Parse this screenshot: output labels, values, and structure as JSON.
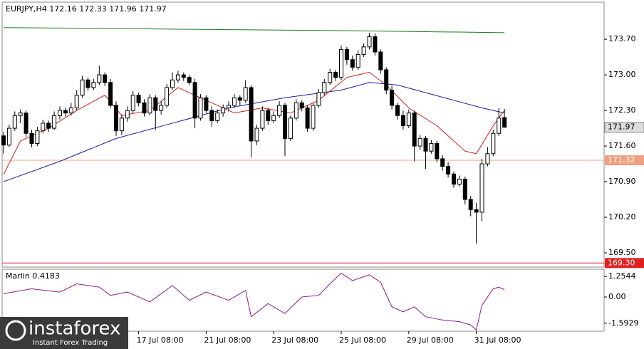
{
  "chart_data": [
    {
      "type": "candlestick",
      "title": "EURJPY,H4  172.16 172.33 171.96 171.97",
      "ylim": [
        169.22,
        174.43
      ],
      "yticks": [
        {
          "value": 173.7,
          "label": "173.70"
        },
        {
          "value": 173,
          "label": "173.00"
        },
        {
          "value": 172.3,
          "label": "172.30"
        },
        {
          "value": 171.6,
          "label": "171.60"
        },
        {
          "value": 170.9,
          "label": "170.90"
        },
        {
          "value": 170.2,
          "label": "170.20"
        },
        {
          "value": 169.5,
          "label": "169.50"
        }
      ],
      "xticks": [
        {
          "value": 24,
          "label": "17 Jul 08:00"
        },
        {
          "value": 36,
          "label": "21 Jul 08:00"
        },
        {
          "value": 48,
          "label": "23 Jul 08:00"
        },
        {
          "value": 60,
          "label": "25 Jul 08:00"
        },
        {
          "value": 72,
          "label": "29 Jul 08:00"
        },
        {
          "value": 84,
          "label": "31 Jul 08:00"
        }
      ],
      "ohlc": [
        [
          171.8,
          171.88,
          171.45,
          171.62
        ],
        [
          171.62,
          172.02,
          171.58,
          171.95
        ],
        [
          171.95,
          172.28,
          171.9,
          172.2
        ],
        [
          172.2,
          172.32,
          172.05,
          172.25
        ],
        [
          172.25,
          172.3,
          171.78,
          171.85
        ],
        [
          171.85,
          171.92,
          171.58,
          171.65
        ],
        [
          171.65,
          171.98,
          171.6,
          171.9
        ],
        [
          171.9,
          172.12,
          171.85,
          172.05
        ],
        [
          172.05,
          172.1,
          171.88,
          171.95
        ],
        [
          171.95,
          172.28,
          171.92,
          172.2
        ],
        [
          172.2,
          172.38,
          172.12,
          172.3
        ],
        [
          172.3,
          172.36,
          172.18,
          172.25
        ],
        [
          172.25,
          172.45,
          172.2,
          172.35
        ],
        [
          172.35,
          172.7,
          172.3,
          172.6
        ],
        [
          172.6,
          172.98,
          172.55,
          172.9
        ],
        [
          172.9,
          172.95,
          172.68,
          172.75
        ],
        [
          172.75,
          172.92,
          172.7,
          172.85
        ],
        [
          172.85,
          173.18,
          172.8,
          173.0
        ],
        [
          173.0,
          173.05,
          172.78,
          172.85
        ],
        [
          172.85,
          172.92,
          172.35,
          172.4
        ],
        [
          172.4,
          172.48,
          171.8,
          171.9
        ],
        [
          171.9,
          172.22,
          171.82,
          172.15
        ],
        [
          172.15,
          172.38,
          172.08,
          172.3
        ],
        [
          172.3,
          172.68,
          172.25,
          172.6
        ],
        [
          172.6,
          172.65,
          172.38,
          172.45
        ],
        [
          172.45,
          172.52,
          172.18,
          172.25
        ],
        [
          172.25,
          172.62,
          172.2,
          172.55
        ],
        [
          172.55,
          172.6,
          171.92,
          172.3
        ],
        [
          172.3,
          172.48,
          172.22,
          172.4
        ],
        [
          172.4,
          172.82,
          172.35,
          172.75
        ],
        [
          172.75,
          173.05,
          172.7,
          172.9
        ],
        [
          172.9,
          173.08,
          172.85,
          173.0
        ],
        [
          173.0,
          173.05,
          172.88,
          172.95
        ],
        [
          172.95,
          173.0,
          172.8,
          172.85
        ],
        [
          172.85,
          172.92,
          171.95,
          172.15
        ],
        [
          172.15,
          172.62,
          172.1,
          172.55
        ],
        [
          172.55,
          172.6,
          172.25,
          172.3
        ],
        [
          172.3,
          172.38,
          171.98,
          172.1
        ],
        [
          172.1,
          172.32,
          172.05,
          172.25
        ],
        [
          172.25,
          172.42,
          172.18,
          172.35
        ],
        [
          172.35,
          172.48,
          172.28,
          172.4
        ],
        [
          172.4,
          172.62,
          172.35,
          172.55
        ],
        [
          172.55,
          172.6,
          172.4,
          172.5
        ],
        [
          172.5,
          172.9,
          172.45,
          172.75
        ],
        [
          172.75,
          172.8,
          171.38,
          171.7
        ],
        [
          171.7,
          172.02,
          171.62,
          171.95
        ],
        [
          171.95,
          172.38,
          171.9,
          172.3
        ],
        [
          172.3,
          172.35,
          172.02,
          172.1
        ],
        [
          172.1,
          172.28,
          172.05,
          172.2
        ],
        [
          172.2,
          172.48,
          172.15,
          172.4
        ],
        [
          172.4,
          172.45,
          171.4,
          171.75
        ],
        [
          171.75,
          172.2,
          171.7,
          172.15
        ],
        [
          172.15,
          172.52,
          172.1,
          172.45
        ],
        [
          172.45,
          172.5,
          172.28,
          172.35
        ],
        [
          172.35,
          172.4,
          171.88,
          171.95
        ],
        [
          171.95,
          172.45,
          171.9,
          172.4
        ],
        [
          172.4,
          172.72,
          172.35,
          172.65
        ],
        [
          172.65,
          172.92,
          172.6,
          172.85
        ],
        [
          172.85,
          173.12,
          172.8,
          173.05
        ],
        [
          173.05,
          173.1,
          172.88,
          172.95
        ],
        [
          172.95,
          173.58,
          172.9,
          173.5
        ],
        [
          173.5,
          173.55,
          173.2,
          173.3
        ],
        [
          173.3,
          173.38,
          173.08,
          173.15
        ],
        [
          173.15,
          173.48,
          173.1,
          173.4
        ],
        [
          173.4,
          173.62,
          173.35,
          173.55
        ],
        [
          173.55,
          173.82,
          173.5,
          173.75
        ],
        [
          173.75,
          173.82,
          173.38,
          173.45
        ],
        [
          173.45,
          173.5,
          173.02,
          173.1
        ],
        [
          173.1,
          173.15,
          172.62,
          172.7
        ],
        [
          172.7,
          172.78,
          172.32,
          172.4
        ],
        [
          172.4,
          172.45,
          172.12,
          172.2
        ],
        [
          172.2,
          172.3,
          171.92,
          172.0
        ],
        [
          172.0,
          172.32,
          171.95,
          172.25
        ],
        [
          172.25,
          172.3,
          171.3,
          171.6
        ],
        [
          171.6,
          171.82,
          171.52,
          171.75
        ],
        [
          171.75,
          171.8,
          171.15,
          171.5
        ],
        [
          171.5,
          171.72,
          171.45,
          171.65
        ],
        [
          171.65,
          171.7,
          171.28,
          171.35
        ],
        [
          171.35,
          171.42,
          171.12,
          171.2
        ],
        [
          171.2,
          171.28,
          170.98,
          171.05
        ],
        [
          171.05,
          171.1,
          170.78,
          170.85
        ],
        [
          170.85,
          171.02,
          170.8,
          170.95
        ],
        [
          170.95,
          171.0,
          170.45,
          170.55
        ],
        [
          170.55,
          170.62,
          170.22,
          170.35
        ],
        [
          170.35,
          170.48,
          169.68,
          170.3
        ],
        [
          170.3,
          171.35,
          170.12,
          171.25
        ],
        [
          171.25,
          171.58,
          171.2,
          171.45
        ],
        [
          171.45,
          171.92,
          171.4,
          171.85
        ],
        [
          171.85,
          172.35,
          171.8,
          172.15
        ],
        [
          172.16,
          172.33,
          171.96,
          171.97
        ]
      ],
      "lines": [
        {
          "color": "#1a7a1a",
          "x": [
            0,
            30,
            60,
            89
          ],
          "values": [
            173.93,
            173.9,
            173.87,
            173.83
          ]
        },
        {
          "color": "#1a1aa0",
          "x": [
            0,
            10,
            20,
            30,
            40,
            50,
            60,
            65,
            70,
            75,
            80,
            85,
            89
          ],
          "values": [
            170.9,
            171.3,
            171.75,
            172.05,
            172.35,
            172.55,
            172.7,
            172.85,
            172.8,
            172.65,
            172.5,
            172.35,
            172.25
          ]
        },
        {
          "color": "#c81e1e",
          "x": [
            0,
            3,
            8,
            13,
            18,
            21,
            26,
            31,
            36,
            41,
            46,
            51,
            56,
            61,
            65,
            68,
            72,
            77,
            82,
            84,
            87,
            89
          ],
          "values": [
            171.04,
            171.7,
            171.95,
            172.3,
            172.6,
            172.2,
            172.3,
            172.75,
            172.5,
            172.25,
            172.35,
            172.25,
            172.5,
            172.95,
            173.05,
            172.8,
            172.35,
            172.0,
            171.5,
            171.45,
            172.0,
            172.3
          ]
        }
      ],
      "levels": [
        {
          "value": 171.32,
          "label": "171.32",
          "color": "#f0a080"
        },
        {
          "value": 169.3,
          "label": "169.30",
          "color": "#e02020"
        }
      ]
    },
    {
      "type": "line",
      "title": "Marlin 0.4183",
      "color": "#8a1a8a",
      "ylim": [
        -2.08,
        1.69
      ],
      "yticks": [
        1.2544,
        {
          "value": 0,
          "label": "0.00"
        },
        -1.5929
      ],
      "x": [
        0,
        5,
        10,
        13,
        17,
        19,
        22,
        26,
        30,
        33,
        36,
        40,
        43,
        44,
        47,
        50,
        53,
        56,
        58,
        60,
        62,
        65,
        67,
        69,
        71,
        73,
        75,
        78,
        81,
        83,
        84,
        85,
        87,
        88,
        89
      ],
      "values": [
        0.2,
        0.5,
        0.3,
        0.8,
        0.6,
        0.1,
        0.3,
        -0.3,
        0.7,
        -0.2,
        0.3,
        -0.2,
        0.4,
        -1.2,
        -0.4,
        -1.0,
        0.0,
        0.1,
        0.8,
        1.45,
        1.0,
        1.35,
        0.9,
        -0.6,
        -0.9,
        -0.6,
        -1.2,
        -1.4,
        -1.5,
        -1.7,
        -2.0,
        -0.5,
        0.5,
        0.6,
        0.45
      ]
    }
  ],
  "watermark": {
    "brand": "instaforex",
    "tagline": "Instant Forex Trading"
  }
}
